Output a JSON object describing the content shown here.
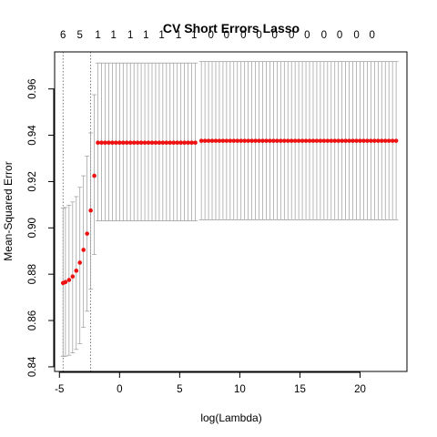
{
  "chart_data": {
    "type": "scatter",
    "title": "CV Short Errors Lasso",
    "xlabel": "log(Lambda)",
    "ylabel": "Mean-Squared Error",
    "xlim": [
      -5.4,
      23.9
    ],
    "ylim": [
      0.838,
      0.976
    ],
    "x_ticks": [
      -5,
      0,
      5,
      10,
      15,
      20
    ],
    "x_tick_labels": [
      "-5",
      "0",
      "5",
      "10",
      "15",
      "20"
    ],
    "y_ticks": [
      0.84,
      0.86,
      0.88,
      0.9,
      0.92,
      0.94,
      0.96
    ],
    "y_tick_labels": [
      "0.84",
      "0.86",
      "0.88",
      "0.90",
      "0.92",
      "0.94",
      "0.96"
    ],
    "top_axis": {
      "x": [
        -4.7,
        -3.3,
        -1.8,
        -0.5,
        0.9,
        2.2,
        3.5,
        4.9,
        6.2,
        7.6,
        8.9,
        10.3,
        11.6,
        12.9,
        14.3,
        15.6,
        17.0,
        18.3,
        19.7,
        21.0
      ],
      "labels": [
        "6",
        "5",
        "1",
        "1",
        "1",
        "1",
        "1",
        "1",
        "1",
        "0",
        "0",
        "0",
        "0",
        "0",
        "0",
        "0",
        "0",
        "0",
        "0",
        "0"
      ]
    },
    "vlines": [
      -4.7,
      -2.4
    ],
    "colors": {
      "points": "#ee1111",
      "errorbars": "#999999",
      "vlines": "#555555"
    },
    "series": [
      {
        "points": [
          [
            -4.7,
            0.8762,
            0.8445,
            0.9085
          ],
          [
            -4.5,
            0.8766,
            0.8446,
            0.9088
          ],
          [
            -4.2,
            0.8775,
            0.845,
            0.9098
          ],
          [
            -3.9,
            0.879,
            0.846,
            0.9112
          ],
          [
            -3.6,
            0.8815,
            0.8475,
            0.9135
          ],
          [
            -3.3,
            0.885,
            0.85,
            0.9175
          ],
          [
            -3.0,
            0.8905,
            0.857,
            0.9225
          ],
          [
            -2.7,
            0.8975,
            0.864,
            0.931
          ],
          [
            -2.4,
            0.9075,
            0.8735,
            0.941
          ],
          [
            -2.1,
            0.9225,
            0.8885,
            0.9575
          ]
        ]
      },
      {
        "x_start": -1.8,
        "x_end": 6.5,
        "step": 0.3,
        "y": 0.9368,
        "lo": 0.903,
        "hi": 0.9712
      },
      {
        "x_start": 6.8,
        "x_end": 23.0,
        "step": 0.3,
        "y": 0.9376,
        "lo": 0.9035,
        "hi": 0.9718
      }
    ]
  }
}
